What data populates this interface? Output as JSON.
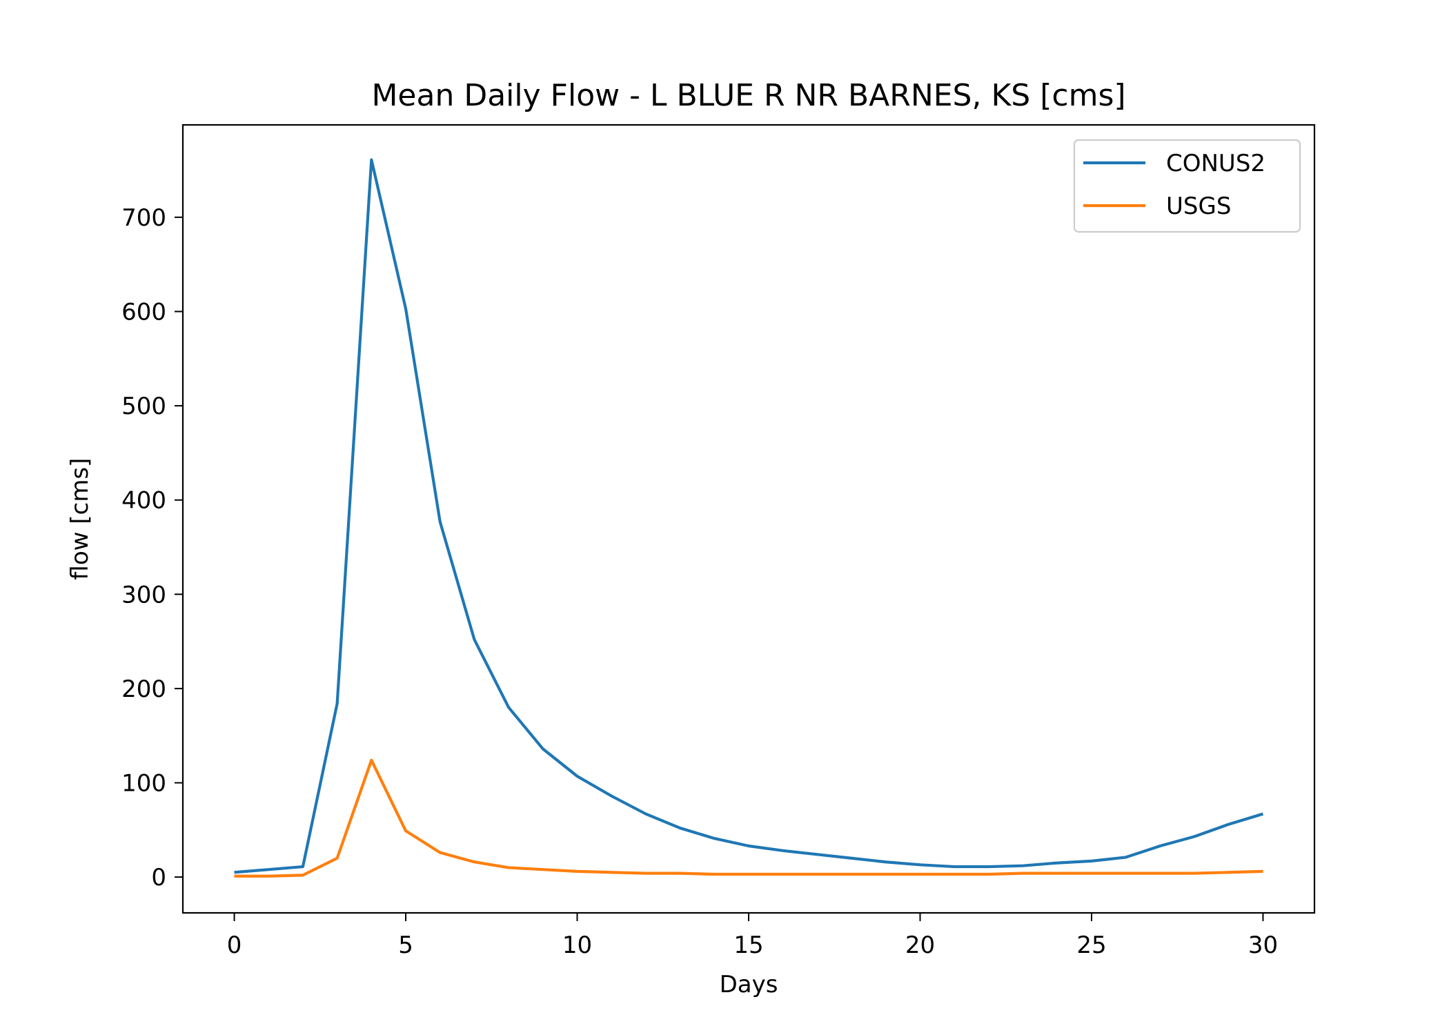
{
  "chart_data": {
    "type": "line",
    "title": "Mean Daily Flow - L BLUE R NR BARNES, KS [cms]",
    "xlabel": "Days",
    "ylabel": "flow [cms]",
    "xlim": [
      -1.5,
      31.5
    ],
    "ylim": [
      -38,
      798
    ],
    "xticks": [
      0,
      5,
      10,
      15,
      20,
      25,
      30
    ],
    "yticks": [
      0,
      100,
      200,
      300,
      400,
      500,
      600,
      700
    ],
    "grid": false,
    "legend_position": "top-right",
    "x": [
      0,
      1,
      2,
      3,
      4,
      5,
      6,
      7,
      8,
      9,
      10,
      11,
      12,
      13,
      14,
      15,
      16,
      17,
      18,
      19,
      20,
      21,
      22,
      23,
      24,
      25,
      26,
      27,
      28,
      29,
      30
    ],
    "series": [
      {
        "name": "CONUS2",
        "color": "#1f77b4",
        "values": [
          5,
          8,
          11,
          184,
          761,
          603,
          377,
          252,
          180,
          136,
          107,
          86,
          67,
          52,
          41,
          33,
          28,
          24,
          20,
          16,
          13,
          11,
          11,
          12,
          15,
          17,
          21,
          33,
          43,
          56,
          67
        ]
      },
      {
        "name": "USGS",
        "color": "#ff7f0e",
        "values": [
          1,
          1,
          2,
          20,
          124,
          49,
          26,
          16,
          10,
          8,
          6,
          5,
          4,
          4,
          3,
          3,
          3,
          3,
          3,
          3,
          3,
          3,
          3,
          4,
          4,
          4,
          4,
          4,
          4,
          5,
          6
        ]
      }
    ]
  }
}
